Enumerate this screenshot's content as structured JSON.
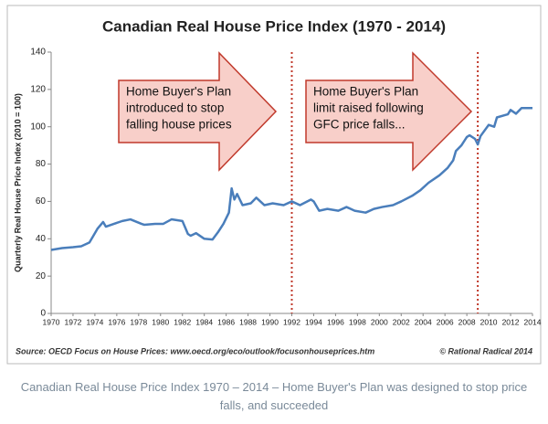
{
  "chart_data": {
    "type": "line",
    "title": "Canadian Real House Price Index (1970 - 2014)",
    "y_label": "Quarterly Real House Price Index (2010 = 100)",
    "x": [
      1970,
      1971,
      1972,
      1972.75,
      1973.5,
      1974.25,
      1974.75,
      1975,
      1975.75,
      1976.5,
      1977.25,
      1978.25,
      1978.5,
      1979.5,
      1980.25,
      1981,
      1982,
      1982.5,
      1982.75,
      1983.25,
      1984,
      1984.75,
      1985.25,
      1985.75,
      1986.25,
      1986.5,
      1986.75,
      1987,
      1987.5,
      1988.25,
      1988.75,
      1989.5,
      1990.25,
      1991.25,
      1992,
      1992.75,
      1993.75,
      1994,
      1994.5,
      1995.25,
      1996.25,
      1997,
      1997.75,
      1998.75,
      1999.5,
      2000.25,
      2001.25,
      2002,
      2003,
      2003.75,
      2004.5,
      2005.5,
      2006.25,
      2006.75,
      2007,
      2007.5,
      2008,
      2008.25,
      2008.75,
      2009,
      2009.25,
      2010,
      2010.5,
      2010.75,
      2011.75,
      2012,
      2012.5,
      2013,
      2013.75,
      2014
    ],
    "series": [
      {
        "name": "Canadian Real House Price Index",
        "color": "#4a7ebb",
        "values": [
          34,
          35,
          35.5,
          36,
          38,
          45.5,
          49,
          46.5,
          48,
          49.5,
          50.4,
          48,
          47.5,
          48,
          48,
          50.4,
          49.5,
          42.6,
          41.6,
          43,
          40,
          39.6,
          43.5,
          48,
          54,
          67,
          61,
          64,
          58,
          59,
          62,
          58,
          59,
          58,
          60,
          58,
          61,
          60,
          55,
          56,
          55,
          57,
          55,
          54,
          56,
          57,
          58,
          60,
          63,
          66,
          70,
          74,
          78,
          82,
          87,
          90,
          94.5,
          95.4,
          93.5,
          90.5,
          95,
          101,
          100,
          105,
          106.7,
          109,
          107,
          110,
          110,
          110
        ]
      }
    ],
    "xlim": [
      1970,
      2014
    ],
    "xticks": [
      1970,
      1972,
      1974,
      1976,
      1978,
      1980,
      1982,
      1984,
      1986,
      1988,
      1990,
      1992,
      1994,
      1996,
      1998,
      2000,
      2002,
      2004,
      2006,
      2008,
      2010,
      2012,
      2014
    ],
    "ylim": [
      0,
      140
    ],
    "yticks": [
      0,
      20,
      40,
      60,
      80,
      100,
      120,
      140
    ],
    "vlines": [
      1992,
      2009
    ],
    "vline_color": "#c0392b",
    "annotations": [
      {
        "lines": [
          "Home Buyer's Plan",
          "introduced to stop",
          "falling house prices"
        ]
      },
      {
        "lines": [
          "Home Buyer's Plan",
          "limit raised following",
          "GFC price falls..."
        ]
      }
    ],
    "source": "Source: OECD Focus on House Prices: www.oecd.org/eco/outlook/focusonhouseprices.htm",
    "credit": "© Rational Radical 2014",
    "caption": "Canadian Real House Price Index 1970 – 2014 – Home Buyer's Plan was designed to stop price falls, and succeeded",
    "grid": false
  }
}
